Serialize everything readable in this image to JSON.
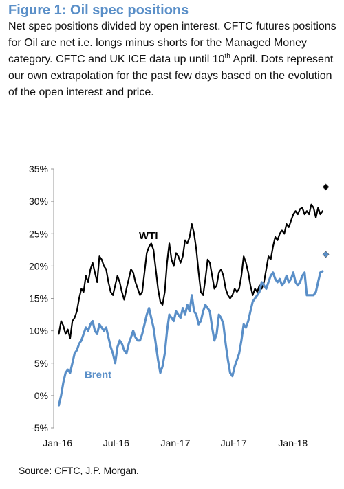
{
  "header": {
    "title": "Figure 1: Oil spec positions",
    "subtitle_pre": "Net spec positions divided by open interest. CFTC futures positions for Oil are net i.e. longs minus shorts for the Managed Money category. CFTC and UK ICE data up until 10",
    "subtitle_sup": "th",
    "subtitle_post": " April. Dots represent our own extrapolation for the past few days based on the evolution of the open interest and price."
  },
  "footer": {
    "source": "Source: CFTC, J.P. Morgan."
  },
  "colors": {
    "wti": "#000000",
    "brent": "#5a8fc8",
    "title": "#5a8fc8",
    "axis": "#999999"
  },
  "chart_data": {
    "type": "line",
    "title": "Figure 1: Oil spec positions",
    "xlabel": "",
    "ylabel": "",
    "x_tick_labels": [
      "Jan-16",
      "Jul-16",
      "Jan-17",
      "Jul-17",
      "Jan-18"
    ],
    "x_tick_dates": [
      "2016-01-01",
      "2016-07-01",
      "2017-01-01",
      "2017-07-01",
      "2018-01-01"
    ],
    "x_range": [
      "2015-12-20",
      "2018-05-01"
    ],
    "ylim": [
      -5,
      35
    ],
    "y_ticks": [
      -5,
      0,
      5,
      10,
      15,
      20,
      25,
      30,
      35
    ],
    "y_format": "percent",
    "grid": false,
    "legend": "inline-labels",
    "series": [
      {
        "name": "WTI",
        "color": "#000000",
        "points": [
          [
            "2016-01-05",
            9.5
          ],
          [
            "2016-01-12",
            11.5
          ],
          [
            "2016-01-19",
            10.8
          ],
          [
            "2016-01-26",
            9.5
          ],
          [
            "2016-02-02",
            10.2
          ],
          [
            "2016-02-09",
            8.8
          ],
          [
            "2016-02-16",
            11.5
          ],
          [
            "2016-02-23",
            12.0
          ],
          [
            "2016-03-01",
            13.0
          ],
          [
            "2016-03-08",
            15.0
          ],
          [
            "2016-03-15",
            16.5
          ],
          [
            "2016-03-22",
            16.0
          ],
          [
            "2016-03-29",
            18.5
          ],
          [
            "2016-04-05",
            17.5
          ],
          [
            "2016-04-12",
            19.5
          ],
          [
            "2016-04-19",
            20.5
          ],
          [
            "2016-04-26",
            19.0
          ],
          [
            "2016-05-03",
            17.5
          ],
          [
            "2016-05-10",
            21.5
          ],
          [
            "2016-05-17",
            21.0
          ],
          [
            "2016-05-24",
            20.0
          ],
          [
            "2016-05-31",
            19.5
          ],
          [
            "2016-06-07",
            17.5
          ],
          [
            "2016-06-14",
            16.0
          ],
          [
            "2016-06-21",
            15.5
          ],
          [
            "2016-06-28",
            17.0
          ],
          [
            "2016-07-05",
            18.5
          ],
          [
            "2016-07-12",
            17.5
          ],
          [
            "2016-07-19",
            16.0
          ],
          [
            "2016-07-26",
            14.8
          ],
          [
            "2016-08-02",
            16.5
          ],
          [
            "2016-08-09",
            18.0
          ],
          [
            "2016-08-16",
            19.5
          ],
          [
            "2016-08-23",
            19.0
          ],
          [
            "2016-08-30",
            17.5
          ],
          [
            "2016-09-06",
            16.5
          ],
          [
            "2016-09-13",
            15.5
          ],
          [
            "2016-09-20",
            16.0
          ],
          [
            "2016-09-27",
            19.0
          ],
          [
            "2016-10-04",
            22.0
          ],
          [
            "2016-10-11",
            23.0
          ],
          [
            "2016-10-18",
            23.5
          ],
          [
            "2016-10-25",
            22.5
          ],
          [
            "2016-11-01",
            19.5
          ],
          [
            "2016-11-08",
            16.5
          ],
          [
            "2016-11-15",
            14.5
          ],
          [
            "2016-11-22",
            14.0
          ],
          [
            "2016-11-29",
            16.0
          ],
          [
            "2016-12-06",
            20.5
          ],
          [
            "2016-12-13",
            23.5
          ],
          [
            "2016-12-20",
            21.0
          ],
          [
            "2016-12-27",
            20.0
          ],
          [
            "2017-01-03",
            22.0
          ],
          [
            "2017-01-10",
            21.5
          ],
          [
            "2017-01-17",
            20.5
          ],
          [
            "2017-01-24",
            21.5
          ],
          [
            "2017-01-31",
            24.0
          ],
          [
            "2017-02-07",
            23.5
          ],
          [
            "2017-02-14",
            24.5
          ],
          [
            "2017-02-21",
            26.5
          ],
          [
            "2017-02-28",
            25.0
          ],
          [
            "2017-03-07",
            22.5
          ],
          [
            "2017-03-14",
            19.0
          ],
          [
            "2017-03-21",
            16.0
          ],
          [
            "2017-03-28",
            15.5
          ],
          [
            "2017-04-04",
            18.0
          ],
          [
            "2017-04-11",
            21.0
          ],
          [
            "2017-04-18",
            20.5
          ],
          [
            "2017-04-25",
            18.5
          ],
          [
            "2017-05-02",
            16.5
          ],
          [
            "2017-05-09",
            17.0
          ],
          [
            "2017-05-16",
            19.0
          ],
          [
            "2017-05-23",
            19.5
          ],
          [
            "2017-05-30",
            18.5
          ],
          [
            "2017-06-06",
            16.5
          ],
          [
            "2017-06-13",
            15.5
          ],
          [
            "2017-06-20",
            15.0
          ],
          [
            "2017-06-27",
            15.5
          ],
          [
            "2017-07-04",
            16.5
          ],
          [
            "2017-07-11",
            16.0
          ],
          [
            "2017-07-18",
            16.5
          ],
          [
            "2017-07-25",
            18.5
          ],
          [
            "2017-08-01",
            21.5
          ],
          [
            "2017-08-08",
            20.5
          ],
          [
            "2017-08-15",
            19.0
          ],
          [
            "2017-08-22",
            17.0
          ],
          [
            "2017-08-29",
            15.5
          ],
          [
            "2017-09-05",
            16.5
          ],
          [
            "2017-09-12",
            16.0
          ],
          [
            "2017-09-19",
            17.0
          ],
          [
            "2017-09-26",
            16.5
          ],
          [
            "2017-10-03",
            17.5
          ],
          [
            "2017-10-10",
            19.5
          ],
          [
            "2017-10-17",
            21.5
          ],
          [
            "2017-10-24",
            21.0
          ],
          [
            "2017-10-31",
            23.0
          ],
          [
            "2017-11-07",
            24.5
          ],
          [
            "2017-11-14",
            24.0
          ],
          [
            "2017-11-21",
            25.0
          ],
          [
            "2017-11-28",
            25.5
          ],
          [
            "2017-12-05",
            25.0
          ],
          [
            "2017-12-12",
            26.5
          ],
          [
            "2017-12-19",
            26.0
          ],
          [
            "2017-12-26",
            27.0
          ],
          [
            "2018-01-02",
            28.0
          ],
          [
            "2018-01-09",
            28.5
          ],
          [
            "2018-01-16",
            28.0
          ],
          [
            "2018-01-23",
            28.8
          ],
          [
            "2018-01-30",
            29.0
          ],
          [
            "2018-02-06",
            28.0
          ],
          [
            "2018-02-13",
            28.5
          ],
          [
            "2018-02-20",
            28.0
          ],
          [
            "2018-02-27",
            29.5
          ],
          [
            "2018-03-06",
            29.0
          ],
          [
            "2018-03-13",
            27.5
          ],
          [
            "2018-03-20",
            29.0
          ],
          [
            "2018-03-27",
            28.0
          ],
          [
            "2018-04-03",
            28.5
          ]
        ],
        "extrapolation": [
          [
            "2018-04-13",
            32.2
          ]
        ]
      },
      {
        "name": "Brent",
        "color": "#5a8fc8",
        "points": [
          [
            "2016-01-05",
            -1.5
          ],
          [
            "2016-01-12",
            0.0
          ],
          [
            "2016-01-19",
            2.0
          ],
          [
            "2016-01-26",
            3.5
          ],
          [
            "2016-02-02",
            4.0
          ],
          [
            "2016-02-09",
            3.5
          ],
          [
            "2016-02-16",
            5.0
          ],
          [
            "2016-02-23",
            6.5
          ],
          [
            "2016-03-01",
            7.0
          ],
          [
            "2016-03-08",
            8.0
          ],
          [
            "2016-03-15",
            8.5
          ],
          [
            "2016-03-22",
            9.5
          ],
          [
            "2016-03-29",
            10.5
          ],
          [
            "2016-04-05",
            10.0
          ],
          [
            "2016-04-12",
            11.0
          ],
          [
            "2016-04-19",
            11.5
          ],
          [
            "2016-04-26",
            10.0
          ],
          [
            "2016-05-03",
            9.5
          ],
          [
            "2016-05-10",
            11.0
          ],
          [
            "2016-05-17",
            10.5
          ],
          [
            "2016-05-24",
            10.0
          ],
          [
            "2016-05-31",
            10.5
          ],
          [
            "2016-06-07",
            9.0
          ],
          [
            "2016-06-14",
            7.5
          ],
          [
            "2016-06-21",
            6.5
          ],
          [
            "2016-06-28",
            5.0
          ],
          [
            "2016-07-05",
            7.5
          ],
          [
            "2016-07-12",
            8.5
          ],
          [
            "2016-07-19",
            8.0
          ],
          [
            "2016-07-26",
            7.0
          ],
          [
            "2016-08-02",
            6.5
          ],
          [
            "2016-08-09",
            8.0
          ],
          [
            "2016-08-16",
            9.0
          ],
          [
            "2016-08-23",
            10.0
          ],
          [
            "2016-08-30",
            9.0
          ],
          [
            "2016-09-06",
            8.5
          ],
          [
            "2016-09-13",
            8.5
          ],
          [
            "2016-09-20",
            9.5
          ],
          [
            "2016-09-27",
            11.0
          ],
          [
            "2016-10-04",
            12.5
          ],
          [
            "2016-10-11",
            13.5
          ],
          [
            "2016-10-18",
            12.0
          ],
          [
            "2016-10-25",
            10.5
          ],
          [
            "2016-11-01",
            8.0
          ],
          [
            "2016-11-08",
            5.5
          ],
          [
            "2016-11-15",
            3.5
          ],
          [
            "2016-11-22",
            4.5
          ],
          [
            "2016-11-29",
            6.5
          ],
          [
            "2016-12-06",
            10.0
          ],
          [
            "2016-12-13",
            12.5
          ],
          [
            "2016-12-20",
            12.0
          ],
          [
            "2016-12-27",
            11.5
          ],
          [
            "2017-01-03",
            13.0
          ],
          [
            "2017-01-10",
            12.5
          ],
          [
            "2017-01-17",
            12.0
          ],
          [
            "2017-01-24",
            13.5
          ],
          [
            "2017-01-31",
            12.5
          ],
          [
            "2017-02-07",
            14.0
          ],
          [
            "2017-02-14",
            13.0
          ],
          [
            "2017-02-21",
            15.5
          ],
          [
            "2017-02-28",
            13.0
          ],
          [
            "2017-03-07",
            12.5
          ],
          [
            "2017-03-14",
            11.0
          ],
          [
            "2017-03-21",
            11.5
          ],
          [
            "2017-03-28",
            13.0
          ],
          [
            "2017-04-04",
            14.0
          ],
          [
            "2017-04-11",
            13.5
          ],
          [
            "2017-04-18",
            13.0
          ],
          [
            "2017-04-25",
            10.5
          ],
          [
            "2017-05-02",
            8.5
          ],
          [
            "2017-05-09",
            9.5
          ],
          [
            "2017-05-16",
            12.5
          ],
          [
            "2017-05-23",
            12.0
          ],
          [
            "2017-05-30",
            11.0
          ],
          [
            "2017-06-06",
            8.0
          ],
          [
            "2017-06-13",
            5.5
          ],
          [
            "2017-06-20",
            3.5
          ],
          [
            "2017-06-27",
            3.0
          ],
          [
            "2017-07-04",
            4.5
          ],
          [
            "2017-07-11",
            5.5
          ],
          [
            "2017-07-18",
            6.5
          ],
          [
            "2017-07-25",
            8.5
          ],
          [
            "2017-08-01",
            11.0
          ],
          [
            "2017-08-08",
            10.5
          ],
          [
            "2017-08-15",
            11.5
          ],
          [
            "2017-08-22",
            13.0
          ],
          [
            "2017-08-29",
            14.5
          ],
          [
            "2017-09-05",
            15.0
          ],
          [
            "2017-09-12",
            15.5
          ],
          [
            "2017-09-19",
            16.0
          ],
          [
            "2017-09-26",
            17.5
          ],
          [
            "2017-10-03",
            17.0
          ],
          [
            "2017-10-10",
            16.5
          ],
          [
            "2017-10-17",
            17.5
          ],
          [
            "2017-10-24",
            18.5
          ],
          [
            "2017-10-31",
            19.0
          ],
          [
            "2017-11-07",
            18.0
          ],
          [
            "2017-11-14",
            17.5
          ],
          [
            "2017-11-21",
            18.0
          ],
          [
            "2017-11-28",
            17.0
          ],
          [
            "2017-12-05",
            17.5
          ],
          [
            "2017-12-12",
            18.5
          ],
          [
            "2017-12-19",
            17.5
          ],
          [
            "2017-12-26",
            18.0
          ],
          [
            "2018-01-02",
            19.0
          ],
          [
            "2018-01-09",
            17.5
          ],
          [
            "2018-01-16",
            17.0
          ],
          [
            "2018-01-23",
            17.5
          ],
          [
            "2018-01-30",
            18.5
          ],
          [
            "2018-02-06",
            19.0
          ],
          [
            "2018-02-13",
            15.5
          ],
          [
            "2018-02-20",
            15.5
          ],
          [
            "2018-02-27",
            15.5
          ],
          [
            "2018-03-06",
            15.5
          ],
          [
            "2018-03-13",
            16.0
          ],
          [
            "2018-03-20",
            17.5
          ],
          [
            "2018-03-27",
            19.0
          ],
          [
            "2018-04-03",
            19.2
          ]
        ],
        "extrapolation": [
          [
            "2018-04-13",
            21.8
          ]
        ]
      }
    ],
    "inline_labels": [
      {
        "text": "WTI",
        "series": "WTI",
        "date": "2016-09-10",
        "y": 24.2
      },
      {
        "text": "Brent",
        "series": "Brent",
        "date": "2016-03-25",
        "y": 2.7
      }
    ]
  }
}
